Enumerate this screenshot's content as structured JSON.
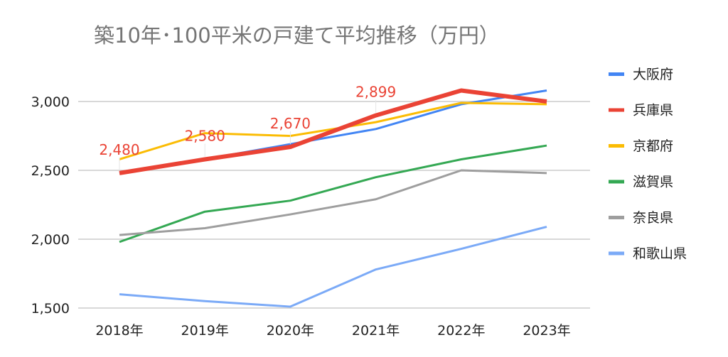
{
  "chart_data": {
    "type": "line",
    "title": "築10年･100平米の戸建て平均推移（万円）",
    "xlabel": "",
    "ylabel": "",
    "categories": [
      "2018年",
      "2019年",
      "2020年",
      "2021年",
      "2022年",
      "2023年"
    ],
    "ylim": [
      1500,
      3000
    ],
    "yticks": [
      1500,
      2000,
      2500,
      3000
    ],
    "ytick_labels": [
      "1,500",
      "2,000",
      "2,500",
      "3,000"
    ],
    "grid": true,
    "legend_position": "right",
    "series": [
      {
        "name": "大阪府",
        "color": "#4285F4",
        "values": [
          2480,
          2580,
          2690,
          2800,
          2980,
          3080
        ]
      },
      {
        "name": "京都府",
        "color": "#FBBC04",
        "values": [
          2580,
          2770,
          2750,
          2850,
          2990,
          2980
        ]
      },
      {
        "name": "滋賀県",
        "color": "#34A853",
        "values": [
          1980,
          2200,
          2280,
          2450,
          2580,
          2680
        ]
      },
      {
        "name": "奈良県",
        "color": "#9E9E9E",
        "values": [
          2030,
          2080,
          2180,
          2290,
          2500,
          2480
        ]
      },
      {
        "name": "和歌山県",
        "color": "#7BAAF7",
        "values": [
          1600,
          1550,
          1510,
          1780,
          1930,
          2090
        ]
      },
      {
        "name": "兵庫県",
        "color": "#EA4335",
        "values": [
          2480,
          2580,
          2670,
          2899,
          3080,
          3000
        ],
        "emphasized": true
      }
    ],
    "legend_order": [
      "大阪府",
      "兵庫県",
      "京都府",
      "滋賀県",
      "奈良県",
      "和歌山県"
    ],
    "data_labels": [
      {
        "series": "兵庫県",
        "category": "2018年",
        "text": "2,480"
      },
      {
        "series": "兵庫県",
        "category": "2019年",
        "text": "2,580"
      },
      {
        "series": "兵庫県",
        "category": "2020年",
        "text": "2,670"
      },
      {
        "series": "兵庫県",
        "category": "2021年",
        "text": "2,899"
      }
    ]
  }
}
